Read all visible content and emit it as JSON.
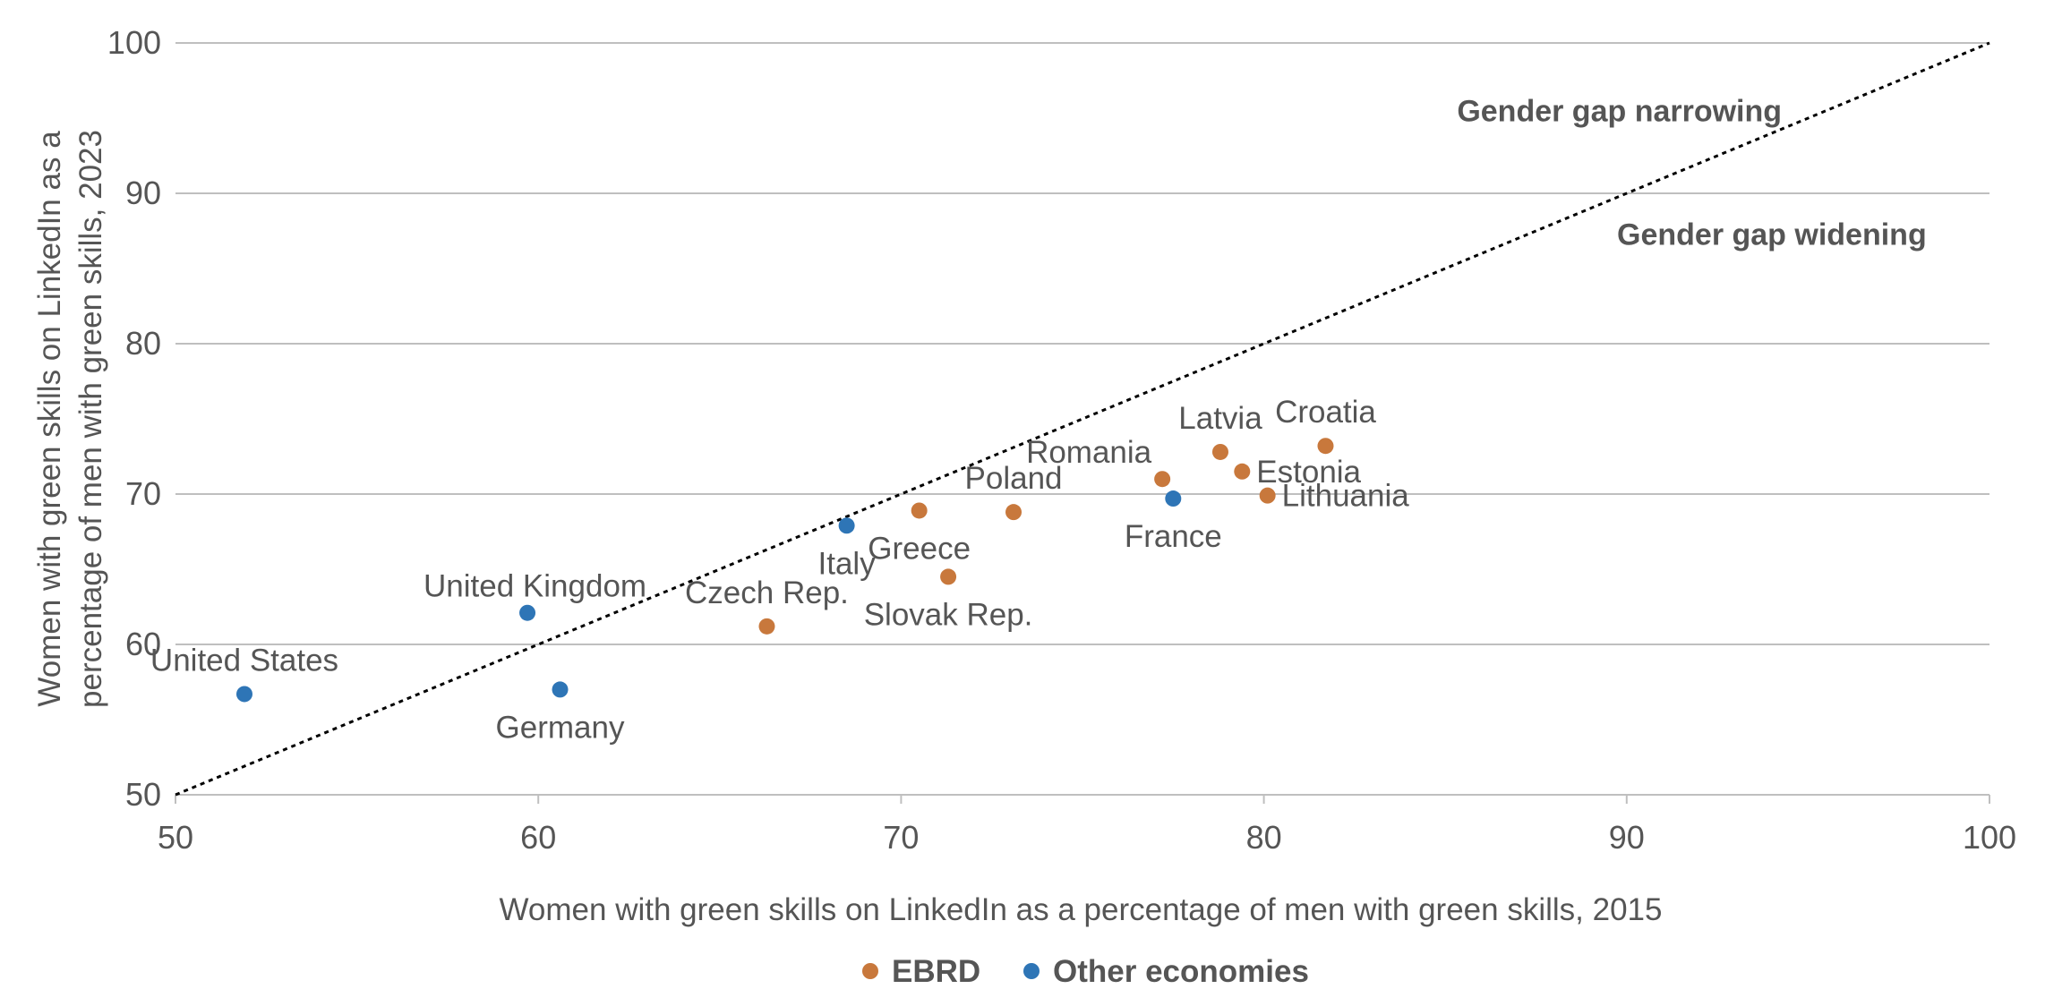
{
  "chart_data": {
    "type": "scatter",
    "title": "",
    "xlabel": "Women with green skills on LinkedIn as a percentage of men with green skills, 2015",
    "ylabel": "Women with green skills on LinkedIn as a\npercentage of men with green skills, 2023",
    "xlim": [
      50,
      100
    ],
    "ylim": [
      50,
      100
    ],
    "x_ticks": [
      "50",
      "60",
      "70",
      "80",
      "90",
      "100"
    ],
    "y_ticks": [
      "50",
      "60",
      "70",
      "80",
      "90",
      "100"
    ],
    "grid": "horizontal",
    "legend_position": "bottom-center",
    "reference_line": {
      "from": [
        50,
        50
      ],
      "to": [
        100,
        100
      ],
      "style": "dotted",
      "color": "#000000"
    },
    "annotations": [
      {
        "text": "Gender gap narrowing",
        "x": 89.8,
        "y": 95.5
      },
      {
        "text": "Gender gap widening",
        "x": 94.0,
        "y": 87.3
      }
    ],
    "series": [
      {
        "name": "EBRD",
        "color": "#c8783c",
        "points": [
          {
            "label": "Czech Rep.",
            "x": 66.3,
            "y": 61.2,
            "label_pos": "top"
          },
          {
            "label": "Greece",
            "x": 70.5,
            "y": 68.9,
            "label_pos": "bottom"
          },
          {
            "label": "Slovak Rep.",
            "x": 71.3,
            "y": 64.5,
            "label_pos": "bottom"
          },
          {
            "label": "Poland",
            "x": 73.1,
            "y": 68.8,
            "label_pos": "top"
          },
          {
            "label": "Romania",
            "x": 77.2,
            "y": 71.0,
            "label_pos": "top-left"
          },
          {
            "label": "Latvia",
            "x": 78.8,
            "y": 72.8,
            "label_pos": "top"
          },
          {
            "label": "Estonia",
            "x": 79.4,
            "y": 71.5,
            "label_pos": "right"
          },
          {
            "label": "Lithuania",
            "x": 80.1,
            "y": 69.9,
            "label_pos": "right"
          },
          {
            "label": "Croatia",
            "x": 81.7,
            "y": 73.2,
            "label_pos": "top"
          }
        ]
      },
      {
        "name": "Other economies",
        "color": "#2e75b6",
        "points": [
          {
            "label": "United States",
            "x": 51.9,
            "y": 56.7,
            "label_pos": "top"
          },
          {
            "label": "United Kingdom",
            "x": 59.7,
            "y": 62.1,
            "label_pos": "top-right"
          },
          {
            "label": "Germany",
            "x": 60.6,
            "y": 57.0,
            "label_pos": "bottom"
          },
          {
            "label": "Italy",
            "x": 68.5,
            "y": 67.9,
            "label_pos": "bottom"
          },
          {
            "label": "France",
            "x": 77.5,
            "y": 69.7,
            "label_pos": "bottom"
          }
        ]
      }
    ]
  }
}
